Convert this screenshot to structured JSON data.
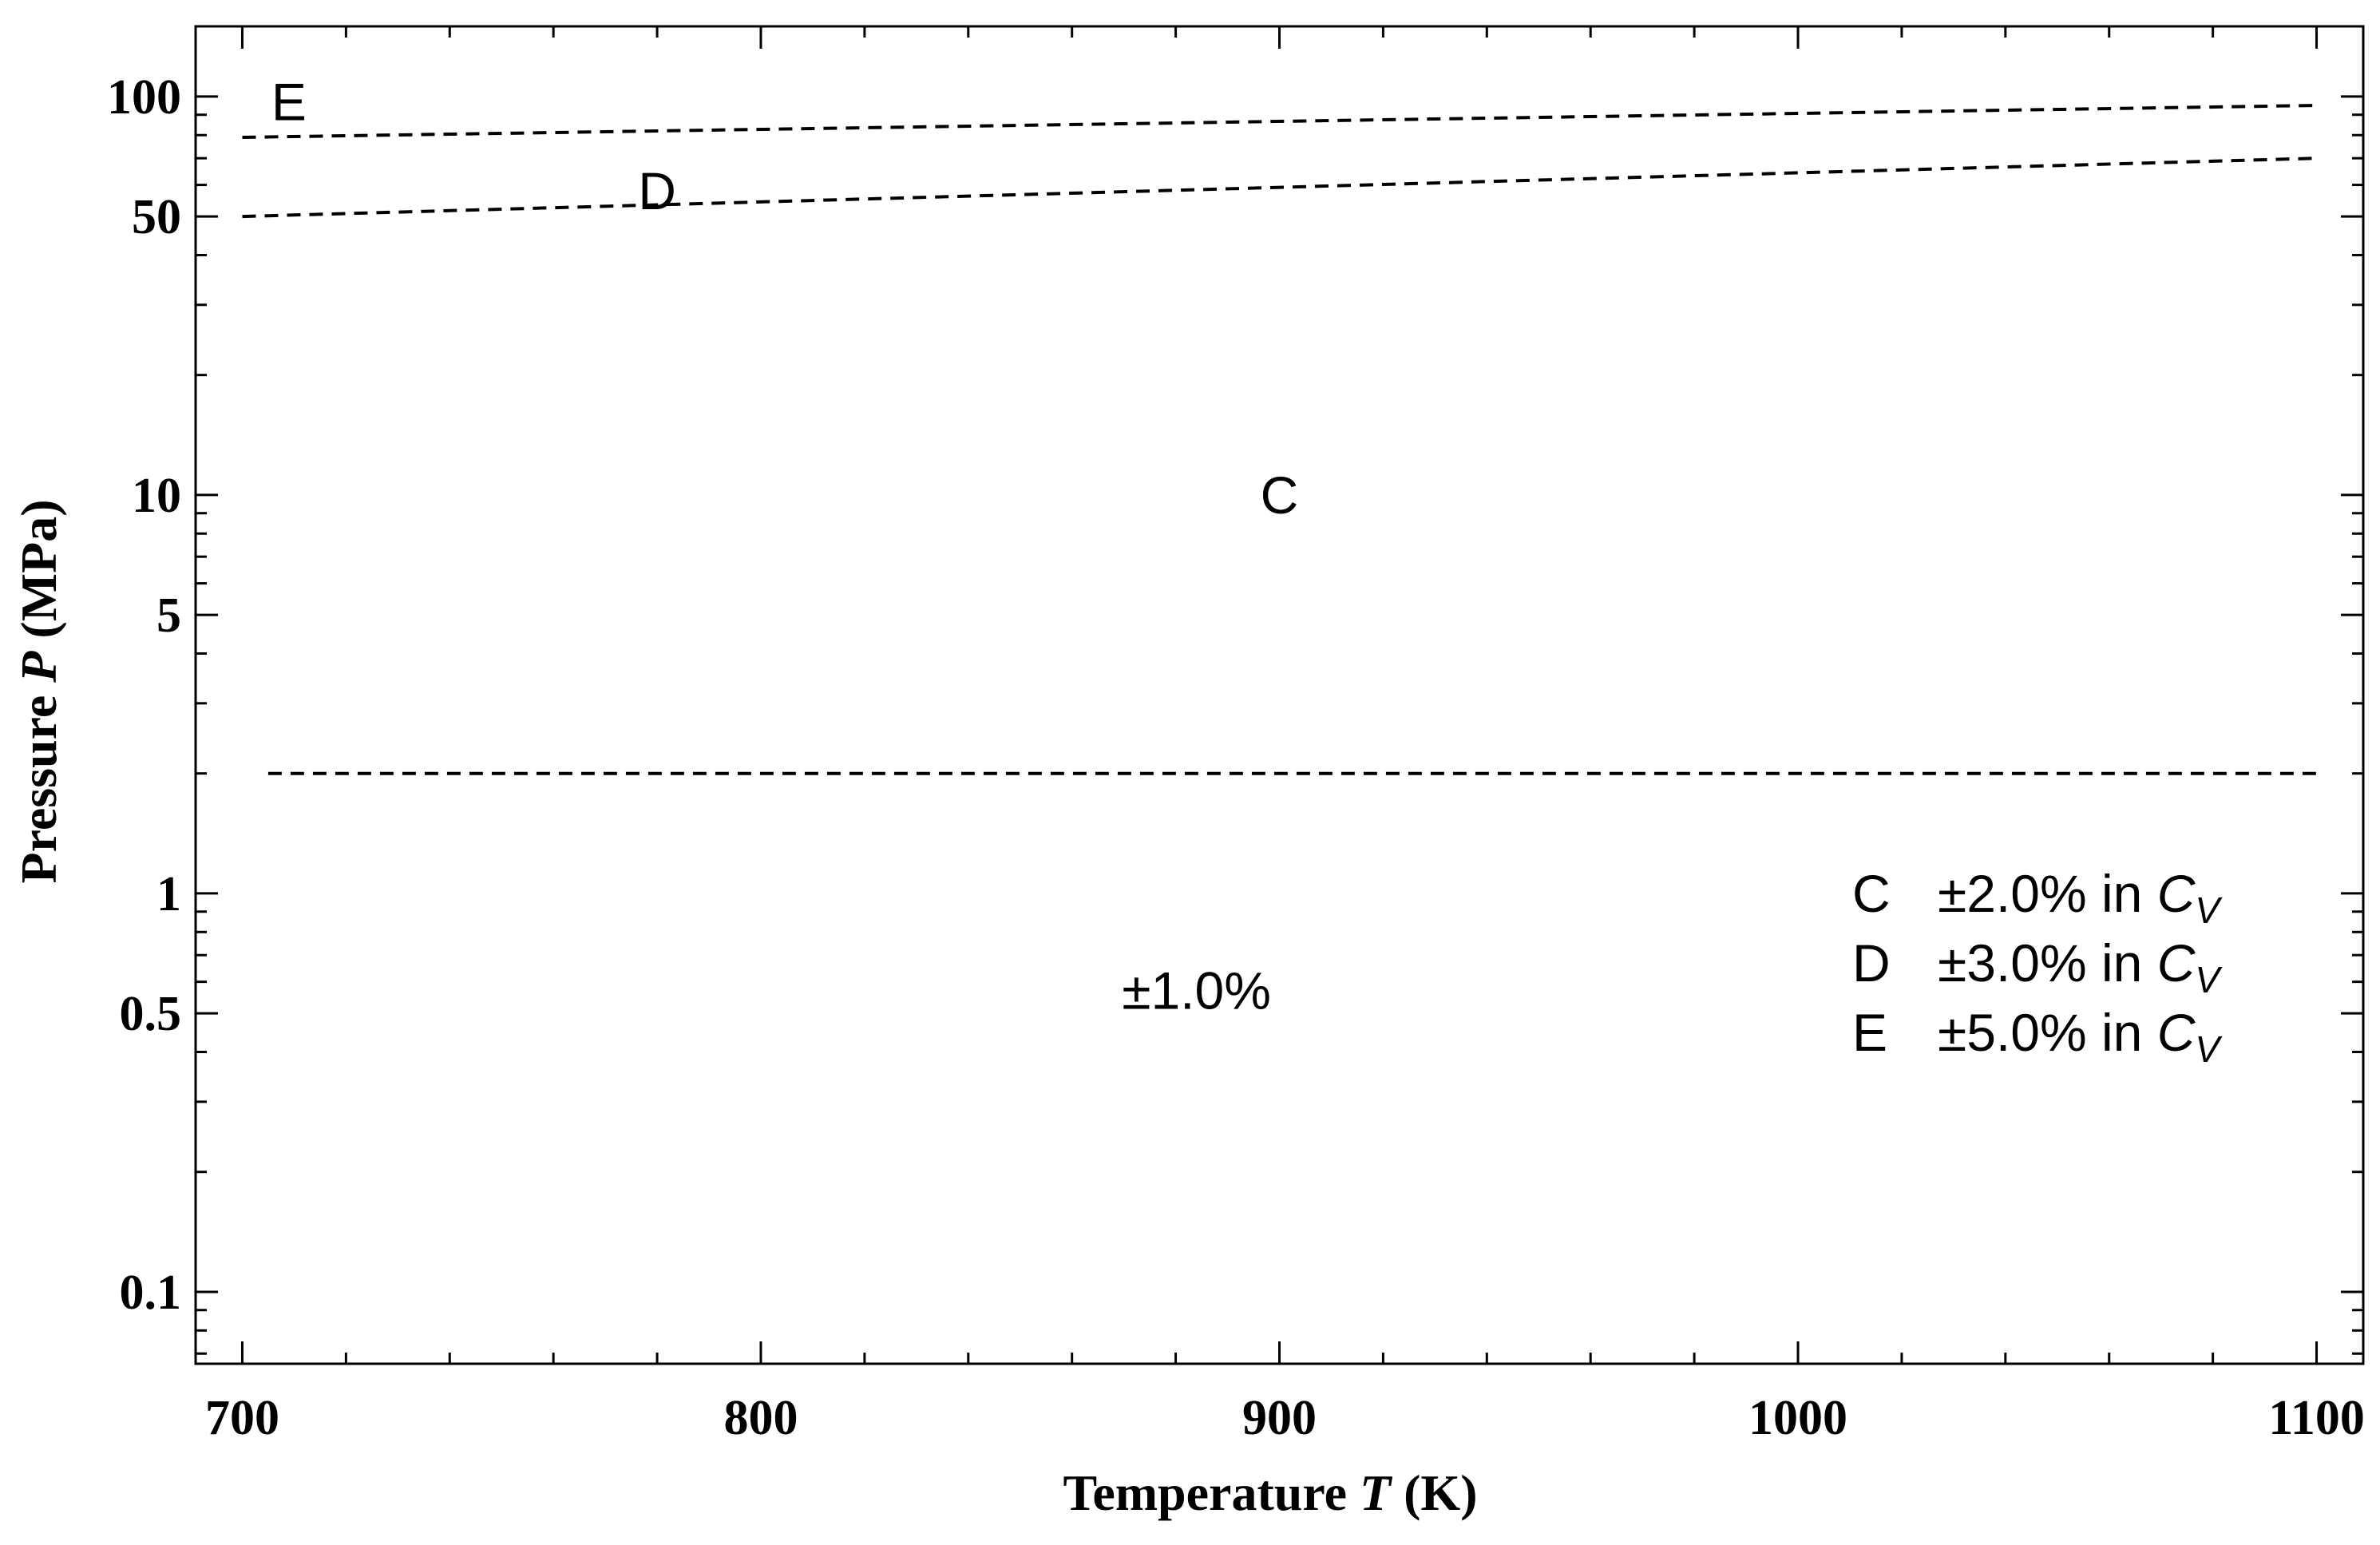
{
  "chart_data": {
    "type": "line",
    "xlabel": {
      "prefix": "Temperature ",
      "symbol": "T",
      "suffix": " (K)"
    },
    "ylabel": {
      "prefix": "Pressure ",
      "symbol": "P",
      "suffix": " (MPa)"
    },
    "xlim": [
      691,
      1109
    ],
    "ylim": [
      0.066,
      150
    ],
    "yscale": "log",
    "x_ticks": [
      700,
      800,
      900,
      1000,
      1100
    ],
    "x_tick_labels": [
      "700",
      "800",
      "900",
      "1000",
      "1100"
    ],
    "y_ticks": [
      0.1,
      0.5,
      1,
      5,
      10,
      50,
      100
    ],
    "y_tick_labels": [
      "0.1",
      "0.5",
      "1",
      "5",
      "10",
      "50",
      "100"
    ],
    "grid": false,
    "line_style": "dashed",
    "series": [
      {
        "x": [
          705,
          1100
        ],
        "y": [
          2.0,
          2.0
        ]
      },
      {
        "x": [
          700,
          1100
        ],
        "y": [
          50,
          70
        ]
      },
      {
        "x": [
          700,
          1100
        ],
        "y": [
          79,
          95
        ]
      }
    ],
    "annotations": [
      {
        "text": "E",
        "x": 709,
        "y": 97
      },
      {
        "text": "D",
        "x": 780,
        "y": 58
      },
      {
        "text": "C",
        "x": 900,
        "y": 10
      },
      {
        "text": "±1.0%",
        "x": 884,
        "y": 0.57
      }
    ],
    "legend": {
      "placement": "lower-right",
      "entries": [
        {
          "key": "C",
          "text": "±2.0% in ",
          "symbol": "C",
          "subscript": "V"
        },
        {
          "key": "D",
          "text": "±3.0% in ",
          "symbol": "C",
          "subscript": "V"
        },
        {
          "key": "E",
          "text": "±5.0% in ",
          "symbol": "C",
          "subscript": "V"
        }
      ]
    },
    "colors": {
      "line": "#000000",
      "axis": "#000000",
      "background": "#ffffff"
    }
  }
}
